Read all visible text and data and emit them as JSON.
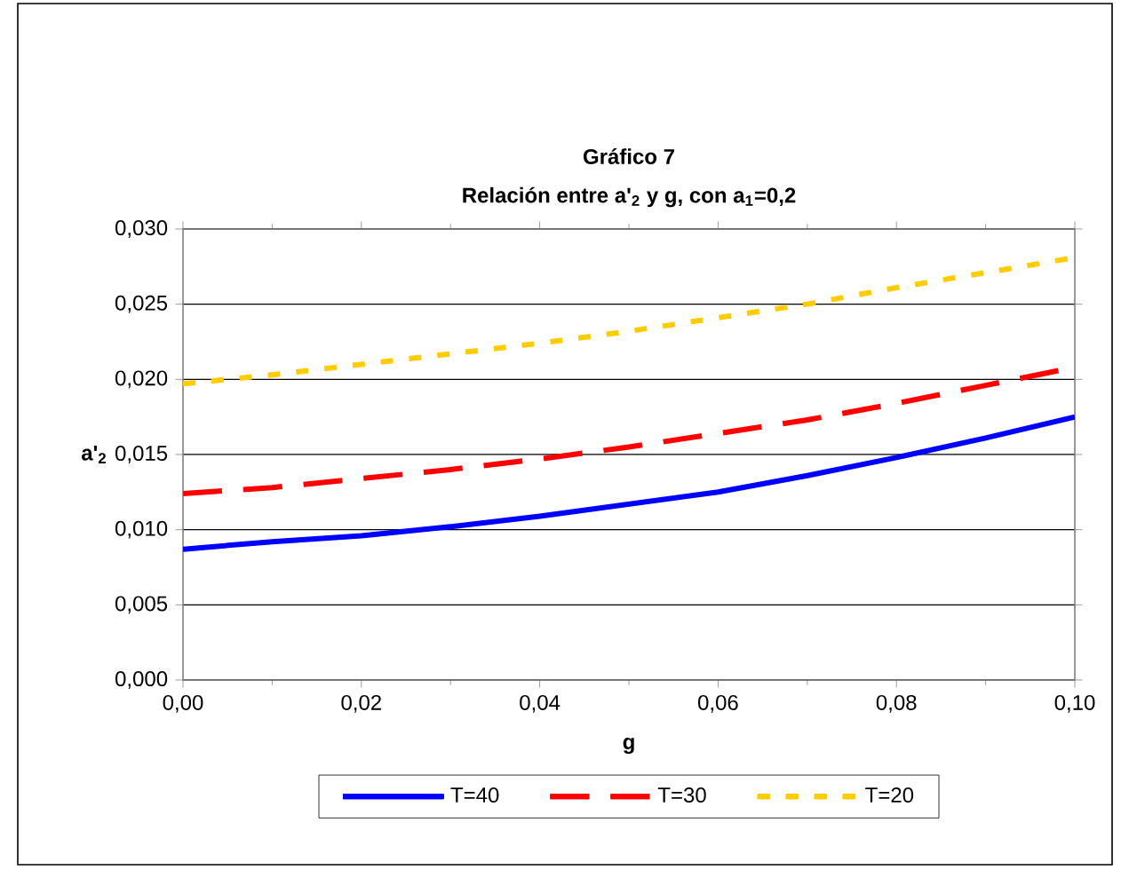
{
  "chart_data": {
    "type": "line",
    "title": "Gráfico 7",
    "subtitle": "Relación entre a'$_{2}$ y g, con a$_{1}$=0,2",
    "xlabel": "g",
    "ylabel": "a'$_{2}$",
    "x": [
      0,
      0.01,
      0.02,
      0.03,
      0.04,
      0.05,
      0.06,
      0.07,
      0.08,
      0.09,
      0.1
    ],
    "series": [
      {
        "name": "T=40",
        "color": "#0000ff",
        "line_style": "solid",
        "values": [
          0.0087,
          0.0092,
          0.0096,
          0.0102,
          0.0109,
          0.0117,
          0.0125,
          0.0136,
          0.0148,
          0.0161,
          0.0175
        ]
      },
      {
        "name": "T=30",
        "color": "#ff0000",
        "line_style": "dashed",
        "values": [
          0.0124,
          0.0128,
          0.0134,
          0.014,
          0.0147,
          0.0155,
          0.0164,
          0.0173,
          0.0184,
          0.0196,
          0.0208
        ]
      },
      {
        "name": "T=20",
        "color": "#ffcc00",
        "line_style": "dotted",
        "values": [
          0.0197,
          0.0203,
          0.021,
          0.0217,
          0.0224,
          0.0232,
          0.0241,
          0.025,
          0.0261,
          0.0271,
          0.0281
        ]
      }
    ],
    "xlim": [
      0,
      0.1
    ],
    "ylim": [
      0,
      0.03
    ],
    "xticks": [
      {
        "value": 0,
        "label": "0,00"
      },
      {
        "value": 0.02,
        "label": "0,02"
      },
      {
        "value": 0.04,
        "label": "0,04"
      },
      {
        "value": 0.06,
        "label": "0,06"
      },
      {
        "value": 0.08,
        "label": "0,08"
      },
      {
        "value": 0.1,
        "label": "0,10"
      }
    ],
    "yticks": [
      {
        "value": 0,
        "label": "0,000"
      },
      {
        "value": 0.005,
        "label": "0,005"
      },
      {
        "value": 0.01,
        "label": "0,010"
      },
      {
        "value": 0.015,
        "label": "0,015"
      },
      {
        "value": 0.02,
        "label": "0,020"
      },
      {
        "value": 0.025,
        "label": "0,025"
      },
      {
        "value": 0.03,
        "label": "0,030"
      }
    ],
    "grid": "y",
    "legend": "bottom",
    "marker": "none"
  }
}
